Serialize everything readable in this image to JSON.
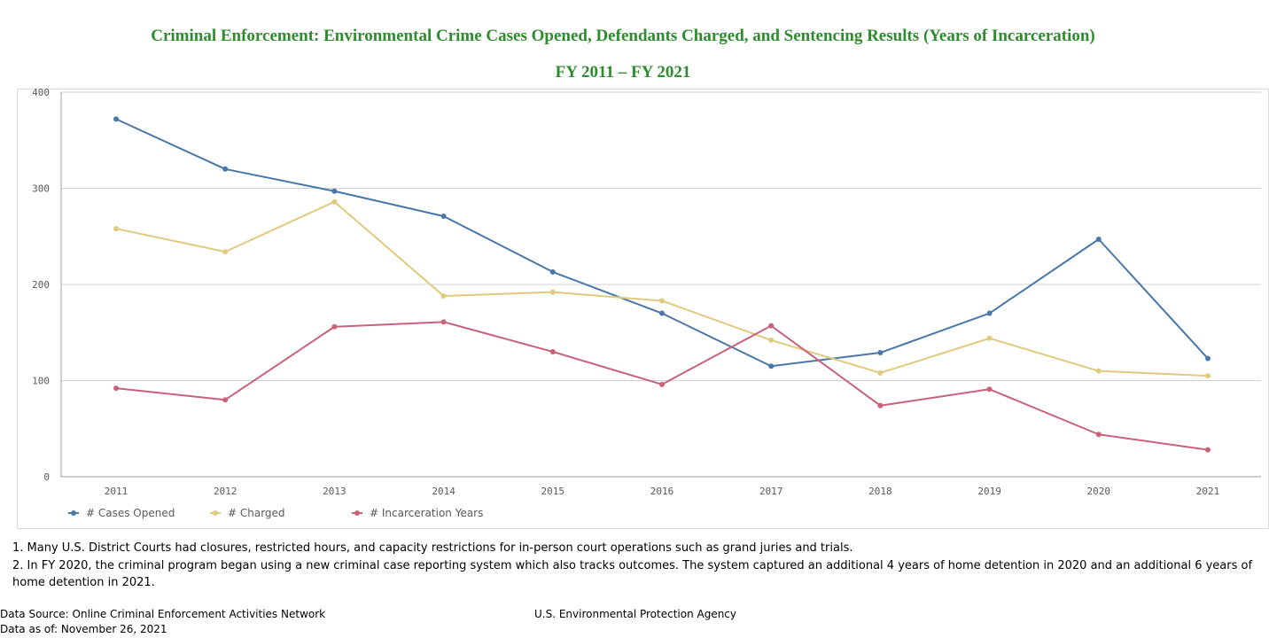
{
  "title": "Criminal Enforcement: Environmental Crime Cases Opened, Defendants Charged, and Sentencing Results (Years of Incarceration)",
  "subtitle": "FY 2011 – FY 2021",
  "notes": [
    "1. Many U.S. District Courts had closures, restricted hours, and capacity restrictions for in-person court operations such as grand juries and trials.",
    "2. In FY 2020, the criminal program began using a new criminal case reporting system which also tracks outcomes. The system captured an additional 4 years of home detention in 2020 and an additional 6 years of home detention in 2021."
  ],
  "footer": {
    "source": "Data Source: Online Criminal Enforcement Activities Network",
    "as_of": "Data as of: November 26, 2021",
    "agency": "U.S. Environmental Protection Agency"
  },
  "chart_data": {
    "type": "line",
    "title": "Criminal Enforcement: Environmental Crime Cases Opened, Defendants Charged, and Sentencing Results (Years of Incarceration)",
    "subtitle": "FY 2011 – FY 2021",
    "categories": [
      "2011",
      "2012",
      "2013",
      "2014",
      "2015",
      "2016",
      "2017",
      "2018",
      "2019",
      "2020",
      "2021"
    ],
    "ylim": [
      0,
      400
    ],
    "yticks": [
      0,
      100,
      200,
      300,
      400
    ],
    "grid": true,
    "legend_position": "bottom-left",
    "series": [
      {
        "name": "# Cases Opened",
        "color": "#4a76a8",
        "values": [
          372,
          320,
          297,
          271,
          213,
          170,
          115,
          129,
          170,
          247,
          123
        ]
      },
      {
        "name": "# Charged",
        "color": "#dfca7d",
        "values": [
          258,
          234,
          286,
          188,
          192,
          183,
          142,
          108,
          144,
          110,
          105
        ]
      },
      {
        "name": "# Incarceration Years",
        "color": "#c8617a",
        "values": [
          92,
          80,
          156,
          161,
          130,
          96,
          157,
          74,
          91,
          44,
          28
        ]
      }
    ]
  }
}
